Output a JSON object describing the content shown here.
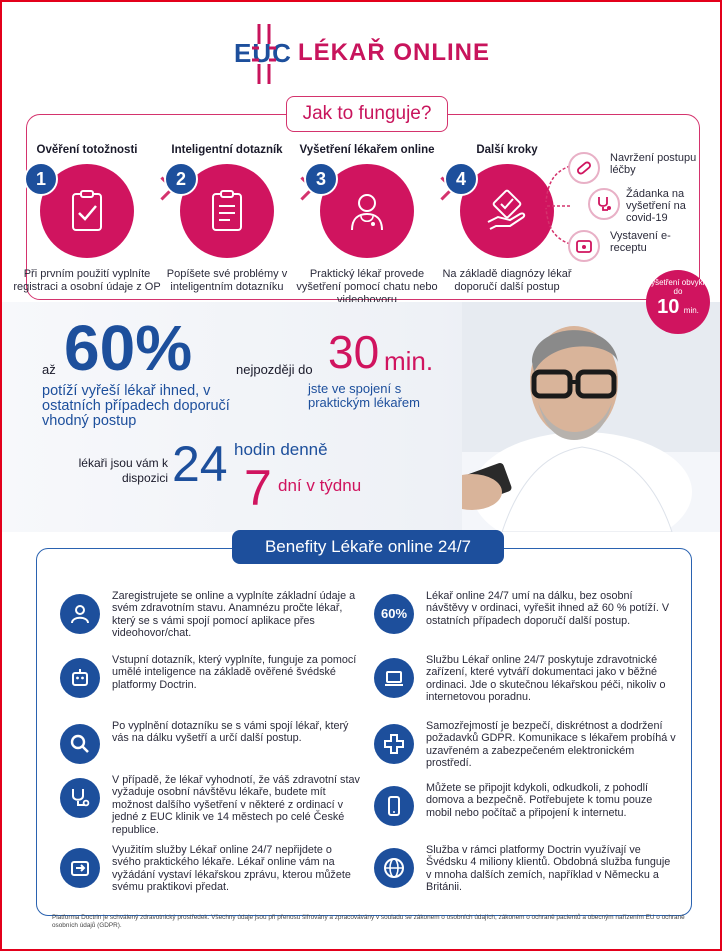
{
  "brand": {
    "logo_text": "EUC",
    "name": "LÉKAŘ ONLINE",
    "colors": {
      "blue": "#1d4f9c",
      "pink": "#d0145f"
    }
  },
  "how": {
    "title": "Jak to funguje?",
    "steps": [
      {
        "num": "1",
        "title": "Ověření totožnosti",
        "icon": "clipboard-check-icon",
        "desc": "Při prvním použití vyplníte registraci a osobní údaje z OP"
      },
      {
        "num": "2",
        "title": "Inteligentní dotazník",
        "icon": "questionnaire-icon",
        "desc": "Popíšete své problémy v inteligentním dotazníku"
      },
      {
        "num": "3",
        "title": "Vyšetření lékařem online",
        "icon": "doctor-icon",
        "desc": "Praktický lékař provede vyšetření pomocí chatu nebo videohovoru"
      },
      {
        "num": "4",
        "title": "Další kroky",
        "icon": "hand-check-icon",
        "desc": "Na základě diagnózy lékař doporučí další postup"
      }
    ],
    "next_steps": [
      {
        "icon": "pills-icon",
        "label": "Navržení postupu léčby"
      },
      {
        "icon": "stethoscope-icon",
        "label": "Žádanka na vyšetření na covid-19"
      },
      {
        "icon": "prescription-icon",
        "label": "Vystavení e-receptu"
      }
    ],
    "badge": {
      "small": "vyšetření obvykle do",
      "number": "10",
      "unit": "min."
    }
  },
  "stats": {
    "s1_prefix": "až",
    "s1_value": "60%",
    "s1_text": "potíží vyřeší lékař ihned, v ostatních případech doporučí vhodný postup",
    "s2_prefix": "nejpozději do",
    "s2_value": "30",
    "s2_unit": "min.",
    "s2_text": "jste ve spojení s praktickým lékařem",
    "s3_prefix": "lékaři jsou vám k dispozici",
    "s3_value": "24",
    "s3_a": "hodin denně",
    "s3_b_num": "7",
    "s3_b": "dní v týdnu"
  },
  "benefits": {
    "title": "Benefity Lékaře online 24/7",
    "items": [
      {
        "icon": "user-icon",
        "text": "Zaregistrujete se online a vyplníte základní údaje a svém zdravotním stavu. Anamnézu pročte lékař, který se s vámi spojí pomocí aplikace přes videohovor/chat."
      },
      {
        "icon": "robot-icon",
        "text": "Vstupní dotazník, který vyplníte, funguje za pomocí umělé inteligence na základě ověřené švédské platformy Doctrin."
      },
      {
        "icon": "magnifier-icon",
        "text": "Po vyplnění dotazníku se s vámi spojí lékař, který vás na dálku vyšetří a určí další postup."
      },
      {
        "icon": "stethoscope-icon",
        "text": "V případě, že lékař vyhodnotí, že váš zdravotní stav vyžaduje osobní návštěvu lékaře, budete mít možnost dalšího vyšetření v některé z ordinací v jedné z EUC klinik ve 14 městech po celé České republice."
      },
      {
        "icon": "share-icon",
        "text": "Využitím služby Lékař online 24/7 nepřijdete o svého praktického lékaře. Lékař online vám na vyžádání vystaví lékařskou zprávu, kterou můžete svému praktikovi předat."
      },
      {
        "icon": "percent-icon",
        "label": "60%",
        "text": "Lékař online 24/7 umí na dálku, bez osobní návštěvy v ordinaci, vyřešit ihned až 60 % potíží. V ostatních případech doporučí další postup."
      },
      {
        "icon": "laptop-icon",
        "text": "Službu Lékař online 24/7 poskytuje zdravotnické zařízení, které vytváří dokumentaci jako v běžné ordinaci. Jde o skutečnou lékařskou péči, nikoliv o internetovou poradnu."
      },
      {
        "icon": "medical-cross-icon",
        "text": "Samozřejmostí je bezpečí, diskrétnost a dodržení požadavků GDPR. Komunikace s lékařem probíhá v uzavřeném a zabezpečeném elektronickém prostředí."
      },
      {
        "icon": "phone-icon",
        "text": "Můžete se připojit kdykoli, odkudkoli, z pohodlí domova a bezpečně. Potřebujete k tomu pouze mobil nebo počítač a připojení k internetu."
      },
      {
        "icon": "globe-icon",
        "text": "Služba v rámci platformy Doctrin využívají ve Švédsku 4 miliony klientů. Obdobná služba funguje v mnoha dalších zemích, například v Německu a Británii."
      }
    ]
  },
  "footnote": "Platforma Doctrin je schválený zdravotnický prostředek. Všechny údaje jsou při přenosu šifrovány a zpracovávány v souladu se zákonem o osobních údajích, zákonem o ochraně pacientů a obecným nařízením EU o ochraně osobních údajů (GDPR)."
}
